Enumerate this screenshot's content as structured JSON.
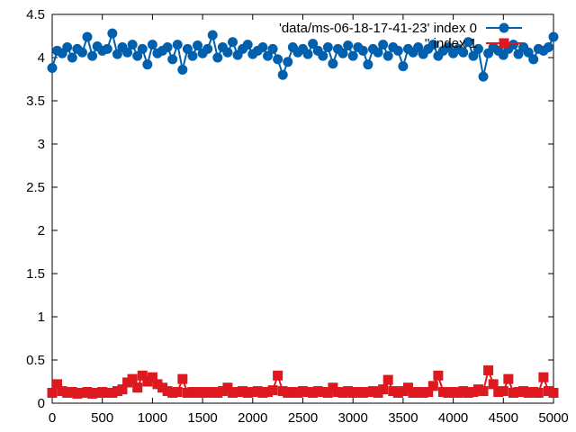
{
  "chart_data": {
    "type": "scatter",
    "title": "",
    "xlabel": "",
    "ylabel": "",
    "xlim": [
      0,
      5000
    ],
    "ylim": [
      0,
      4.5
    ],
    "xticks": [
      "0",
      "500",
      "1000",
      "1500",
      "2000",
      "2500",
      "3000",
      "3500",
      "4000",
      "4500",
      "5000"
    ],
    "yticks": [
      "0",
      "0.5",
      "1",
      "1.5",
      "2",
      "2.5",
      "3",
      "3.5",
      "4",
      "4.5"
    ],
    "grid": false,
    "legend_position": "top-right",
    "series": [
      {
        "name": "'data/ms-06-18-17-41-23' index 0",
        "color": "#0060ad",
        "marker": "circle",
        "x": [
          0,
          50,
          100,
          150,
          200,
          250,
          300,
          350,
          400,
          450,
          500,
          550,
          600,
          650,
          700,
          750,
          800,
          850,
          900,
          950,
          1000,
          1050,
          1100,
          1150,
          1200,
          1250,
          1300,
          1350,
          1400,
          1450,
          1500,
          1550,
          1600,
          1650,
          1700,
          1750,
          1800,
          1850,
          1900,
          1950,
          2000,
          2050,
          2100,
          2150,
          2200,
          2250,
          2300,
          2350,
          2400,
          2450,
          2500,
          2550,
          2600,
          2650,
          2700,
          2750,
          2800,
          2850,
          2900,
          2950,
          3000,
          3050,
          3100,
          3150,
          3200,
          3250,
          3300,
          3350,
          3400,
          3450,
          3500,
          3550,
          3600,
          3650,
          3700,
          3750,
          3800,
          3850,
          3900,
          3950,
          4000,
          4050,
          4100,
          4150,
          4200,
          4250,
          4300,
          4350,
          4400,
          4450,
          4500,
          4550,
          4600,
          4650,
          4700,
          4750,
          4800,
          4850,
          4900,
          4950,
          5000
        ],
        "y": [
          3.88,
          4.08,
          4.05,
          4.12,
          4.0,
          4.1,
          4.06,
          4.24,
          4.02,
          4.13,
          4.08,
          4.1,
          4.28,
          4.04,
          4.12,
          4.06,
          4.15,
          4.02,
          4.1,
          3.92,
          4.15,
          4.05,
          4.08,
          4.12,
          3.98,
          4.15,
          3.86,
          4.1,
          4.02,
          4.14,
          4.05,
          4.1,
          4.26,
          4.0,
          4.12,
          4.06,
          4.18,
          4.03,
          4.1,
          4.15,
          4.04,
          4.08,
          4.12,
          4.02,
          4.1,
          3.98,
          3.8,
          3.95,
          4.12,
          4.06,
          4.1,
          4.04,
          4.16,
          4.08,
          4.02,
          4.12,
          3.93,
          4.1,
          4.05,
          4.14,
          4.02,
          4.12,
          4.08,
          3.92,
          4.1,
          4.06,
          4.15,
          4.02,
          4.12,
          4.08,
          3.9,
          4.1,
          4.06,
          4.12,
          4.04,
          4.1,
          4.15,
          4.02,
          4.08,
          4.12,
          4.05,
          4.1,
          4.06,
          4.18,
          4.02,
          4.1,
          3.78,
          4.05,
          4.12,
          4.08,
          4.03,
          4.1,
          4.15,
          4.04,
          4.12,
          4.06,
          3.98,
          4.1,
          4.08,
          4.12,
          4.24
        ]
      },
      {
        "name": "'' index 1",
        "color": "#dd181f",
        "marker": "square",
        "x": [
          0,
          50,
          100,
          150,
          200,
          250,
          300,
          350,
          400,
          450,
          500,
          550,
          600,
          650,
          700,
          750,
          800,
          850,
          900,
          950,
          1000,
          1050,
          1100,
          1150,
          1200,
          1250,
          1300,
          1350,
          1400,
          1450,
          1500,
          1550,
          1600,
          1650,
          1700,
          1750,
          1800,
          1850,
          1900,
          1950,
          2000,
          2050,
          2100,
          2150,
          2200,
          2250,
          2300,
          2350,
          2400,
          2450,
          2500,
          2550,
          2600,
          2650,
          2700,
          2750,
          2800,
          2850,
          2900,
          2950,
          3000,
          3050,
          3100,
          3150,
          3200,
          3250,
          3300,
          3350,
          3400,
          3450,
          3500,
          3550,
          3600,
          3650,
          3700,
          3750,
          3800,
          3850,
          3900,
          3950,
          4000,
          4050,
          4100,
          4150,
          4200,
          4250,
          4300,
          4350,
          4400,
          4450,
          4500,
          4550,
          4600,
          4650,
          4700,
          4750,
          4800,
          4850,
          4900,
          4950,
          5000
        ],
        "y": [
          0.12,
          0.22,
          0.14,
          0.12,
          0.13,
          0.11,
          0.12,
          0.13,
          0.11,
          0.12,
          0.13,
          0.12,
          0.12,
          0.14,
          0.16,
          0.24,
          0.28,
          0.18,
          0.32,
          0.25,
          0.3,
          0.22,
          0.18,
          0.14,
          0.12,
          0.13,
          0.28,
          0.12,
          0.13,
          0.12,
          0.13,
          0.12,
          0.13,
          0.12,
          0.14,
          0.18,
          0.12,
          0.13,
          0.14,
          0.12,
          0.13,
          0.14,
          0.12,
          0.13,
          0.15,
          0.32,
          0.14,
          0.12,
          0.13,
          0.12,
          0.14,
          0.13,
          0.12,
          0.14,
          0.13,
          0.12,
          0.18,
          0.13,
          0.12,
          0.14,
          0.12,
          0.13,
          0.12,
          0.13,
          0.14,
          0.12,
          0.16,
          0.27,
          0.14,
          0.12,
          0.14,
          0.18,
          0.12,
          0.13,
          0.12,
          0.13,
          0.2,
          0.32,
          0.13,
          0.12,
          0.13,
          0.12,
          0.14,
          0.12,
          0.13,
          0.16,
          0.14,
          0.38,
          0.22,
          0.13,
          0.14,
          0.28,
          0.12,
          0.13,
          0.14,
          0.12,
          0.13,
          0.12,
          0.3,
          0.14,
          0.12
        ]
      }
    ]
  }
}
